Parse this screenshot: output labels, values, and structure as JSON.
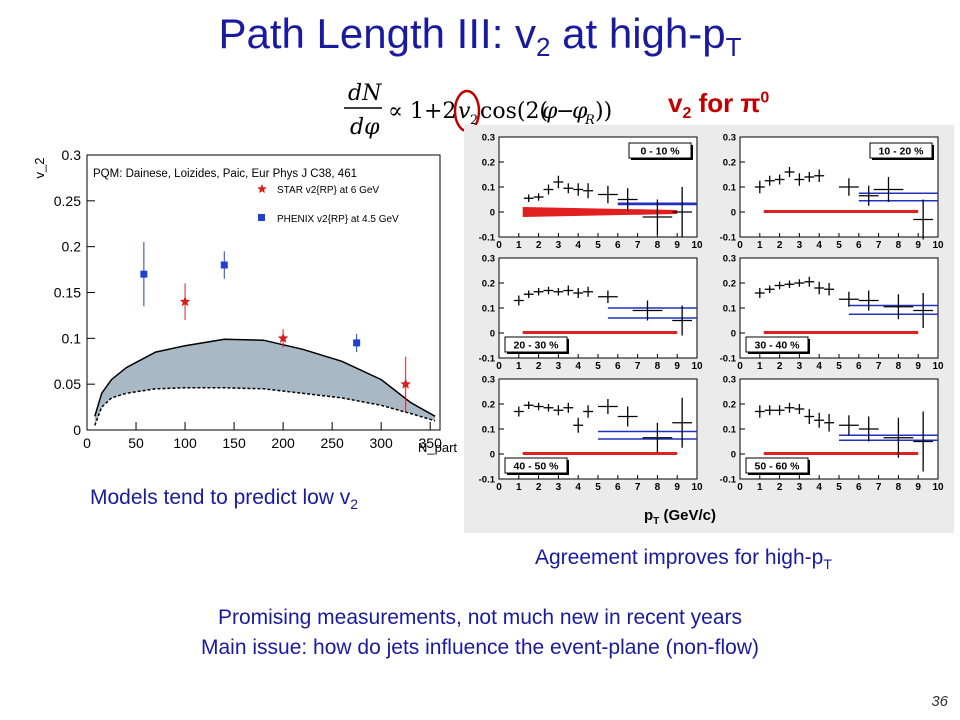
{
  "slide": {
    "title_main": "Path Length III: v",
    "title_sub1": "2",
    "title_mid": " at high-p",
    "title_sub2": "T",
    "formula_text": "dN/dφ ∝ 1 + 2 v2 cos(2(φ − φR))",
    "right_label_v": "v",
    "right_label_sub": "2",
    "right_label_rest": " for ",
    "right_label_pi": "π",
    "right_label_sup": "0",
    "caption_left_main": "Models tend to predict low v",
    "caption_left_sub": "2",
    "caption_right_main": "Agreement improves for high-p",
    "caption_right_sub": "T",
    "bottom_line1": "Promising measurements, not much new in recent years",
    "bottom_line2": "Main issue: how do jets influence the event-plane (non-flow)",
    "page_number": "36"
  },
  "chart_data": [
    {
      "type": "scatter",
      "annotation": "PQM: Dainese, Loizides, Paic, Eur Phys J C38, 461",
      "xlabel": "N_part",
      "ylabel": "v_2",
      "xlim": [
        0,
        360
      ],
      "ylim": [
        0,
        0.3
      ],
      "xticks": [
        0,
        50,
        100,
        150,
        200,
        250,
        300,
        350
      ],
      "yticks": [
        0,
        0.05,
        0.1,
        0.15,
        0.2,
        0.25,
        0.3
      ],
      "ytick_labels": [
        "0",
        "0.05",
        "0.1",
        "0.15",
        "0.2",
        "0.25",
        "0.3"
      ],
      "legend_position": "top-right",
      "series": [
        {
          "name": "STAR v2{RP} at 6 GeV",
          "marker": "star",
          "color": "#d42020",
          "points": [
            {
              "x": 100,
              "y": 0.14,
              "err": 0.02
            },
            {
              "x": 200,
              "y": 0.1,
              "err": 0.01
            },
            {
              "x": 325,
              "y": 0.05,
              "err": 0.03
            }
          ]
        },
        {
          "name": "PHENIX v2{RP} at 4.5 GeV",
          "marker": "square",
          "color": "#2040d0",
          "points": [
            {
              "x": 58,
              "y": 0.17,
              "err": 0.035
            },
            {
              "x": 140,
              "y": 0.18,
              "err": 0.015
            },
            {
              "x": 275,
              "y": 0.095,
              "err": 0.01
            }
          ]
        }
      ],
      "band": {
        "color": "#a9b8c5",
        "upper": [
          [
            8,
            0.015
          ],
          [
            15,
            0.04
          ],
          [
            25,
            0.055
          ],
          [
            40,
            0.068
          ],
          [
            70,
            0.085
          ],
          [
            100,
            0.092
          ],
          [
            140,
            0.099
          ],
          [
            180,
            0.098
          ],
          [
            220,
            0.088
          ],
          [
            260,
            0.075
          ],
          [
            300,
            0.055
          ],
          [
            330,
            0.03
          ],
          [
            355,
            0.015
          ]
        ],
        "lower": [
          [
            8,
            0.005
          ],
          [
            15,
            0.025
          ],
          [
            25,
            0.035
          ],
          [
            40,
            0.04
          ],
          [
            70,
            0.045
          ],
          [
            100,
            0.046
          ],
          [
            140,
            0.046
          ],
          [
            180,
            0.045
          ],
          [
            220,
            0.04
          ],
          [
            260,
            0.035
          ],
          [
            300,
            0.027
          ],
          [
            330,
            0.018
          ],
          [
            355,
            0.01
          ]
        ]
      }
    },
    {
      "type": "scatter",
      "xlabel_main": "p",
      "xlabel_sub": "T",
      "xlabel_unit": "(GeV/c)",
      "xlim": [
        0,
        10
      ],
      "ylim": [
        -0.1,
        0.3
      ],
      "xticks": [
        0,
        1,
        2,
        3,
        4,
        5,
        6,
        7,
        8,
        9,
        10
      ],
      "yticks": [
        -0.1,
        0,
        0.1,
        0.2,
        0.3
      ],
      "ytick_labels": [
        "-0.1",
        "0",
        "0.1",
        "0.2",
        "0.3"
      ],
      "panels": [
        {
          "label": "0 - 10 %",
          "label_pos": "top-right",
          "points": [
            [
              1.5,
              0.055,
              0.25,
              0.015
            ],
            [
              2,
              0.06,
              0.25,
              0.015
            ],
            [
              2.5,
              0.09,
              0.25,
              0.02
            ],
            [
              3,
              0.12,
              0.25,
              0.025
            ],
            [
              3.5,
              0.095,
              0.25,
              0.02
            ],
            [
              4,
              0.09,
              0.25,
              0.025
            ],
            [
              4.5,
              0.085,
              0.25,
              0.03
            ],
            [
              5.5,
              0.07,
              0.5,
              0.035
            ],
            [
              6.5,
              0.05,
              0.5,
              0.045
            ],
            [
              8,
              -0.02,
              0.75,
              0.07
            ],
            [
              9.25,
              0.0,
              0.5,
              0.1
            ]
          ],
          "red_band": [
            [
              1.2,
              0.0
            ],
            [
              9.0,
              0.0
            ]
          ],
          "red_thick": true,
          "blue_lines": [
            [
              6.0,
              0.035
            ],
            [
              6.0,
              0.03
            ]
          ],
          "blue_span": [
            6.0,
            10
          ]
        },
        {
          "label": "10 - 20 %",
          "label_pos": "top-right",
          "points": [
            [
              1,
              0.1,
              0.25,
              0.025
            ],
            [
              1.5,
              0.125,
              0.25,
              0.02
            ],
            [
              2,
              0.13,
              0.25,
              0.02
            ],
            [
              2.5,
              0.16,
              0.25,
              0.02
            ],
            [
              3,
              0.13,
              0.25,
              0.025
            ],
            [
              3.5,
              0.14,
              0.25,
              0.02
            ],
            [
              4,
              0.145,
              0.25,
              0.025
            ],
            [
              5.5,
              0.1,
              0.5,
              0.035
            ],
            [
              6.5,
              0.065,
              0.5,
              0.04
            ],
            [
              7.5,
              0.09,
              0.75,
              0.05
            ],
            [
              9.25,
              -0.03,
              0.5,
              0.08
            ]
          ],
          "red_band": [
            [
              1.2,
              0.0
            ],
            [
              9.0,
              0.0
            ]
          ],
          "red_thick": false,
          "blue_lines": [
            [
              6.5,
              0.075
            ],
            [
              6.5,
              0.045
            ]
          ],
          "blue_span": [
            6.0,
            10
          ]
        },
        {
          "label": "20 - 30 %",
          "label_pos": "bottom-left",
          "points": [
            [
              1,
              0.13,
              0.25,
              0.02
            ],
            [
              1.5,
              0.155,
              0.25,
              0.015
            ],
            [
              2,
              0.165,
              0.25,
              0.015
            ],
            [
              2.5,
              0.17,
              0.25,
              0.015
            ],
            [
              3,
              0.165,
              0.25,
              0.015
            ],
            [
              3.5,
              0.17,
              0.25,
              0.02
            ],
            [
              4,
              0.16,
              0.25,
              0.02
            ],
            [
              4.5,
              0.165,
              0.25,
              0.02
            ],
            [
              5.5,
              0.145,
              0.5,
              0.025
            ],
            [
              7.5,
              0.09,
              0.75,
              0.04
            ],
            [
              9.25,
              0.05,
              0.5,
              0.06
            ]
          ],
          "red_band": [
            [
              1.2,
              0.0
            ],
            [
              9.0,
              0.0
            ]
          ],
          "red_thick": false,
          "blue_lines": [
            [
              5.5,
              0.1
            ],
            [
              5.5,
              0.06
            ]
          ],
          "blue_span": [
            5.5,
            10
          ]
        },
        {
          "label": "30 - 40 %",
          "label_pos": "bottom-left",
          "points": [
            [
              1,
              0.16,
              0.25,
              0.02
            ],
            [
              1.5,
              0.175,
              0.25,
              0.015
            ],
            [
              2,
              0.19,
              0.25,
              0.015
            ],
            [
              2.5,
              0.195,
              0.25,
              0.015
            ],
            [
              3,
              0.2,
              0.25,
              0.015
            ],
            [
              3.5,
              0.205,
              0.25,
              0.02
            ],
            [
              4,
              0.18,
              0.25,
              0.025
            ],
            [
              4.5,
              0.175,
              0.25,
              0.025
            ],
            [
              5.5,
              0.135,
              0.5,
              0.03
            ],
            [
              6.5,
              0.13,
              0.5,
              0.04
            ],
            [
              8,
              0.105,
              0.75,
              0.05
            ],
            [
              9.25,
              0.09,
              0.5,
              0.07
            ]
          ],
          "red_band": [
            [
              1.2,
              0.0
            ],
            [
              9.0,
              0.0
            ]
          ],
          "red_thick": false,
          "blue_lines": [
            [
              5.5,
              0.11
            ],
            [
              5.5,
              0.075
            ]
          ],
          "blue_span": [
            5.5,
            10
          ]
        },
        {
          "label": "40 - 50 %",
          "label_pos": "bottom-left",
          "points": [
            [
              1,
              0.17,
              0.25,
              0.02
            ],
            [
              1.5,
              0.195,
              0.25,
              0.015
            ],
            [
              2,
              0.19,
              0.25,
              0.015
            ],
            [
              2.5,
              0.185,
              0.25,
              0.015
            ],
            [
              3,
              0.175,
              0.25,
              0.02
            ],
            [
              3.5,
              0.185,
              0.25,
              0.02
            ],
            [
              4,
              0.115,
              0.25,
              0.03
            ],
            [
              4.5,
              0.17,
              0.25,
              0.025
            ],
            [
              5.5,
              0.19,
              0.5,
              0.03
            ],
            [
              6.5,
              0.15,
              0.5,
              0.04
            ],
            [
              8,
              0.065,
              0.75,
              0.06
            ],
            [
              9.25,
              0.125,
              0.5,
              0.1
            ]
          ],
          "red_band": [
            [
              1.2,
              0.0
            ],
            [
              9.0,
              0.0
            ]
          ],
          "red_thick": false,
          "blue_lines": [
            [
              5.0,
              0.09
            ],
            [
              5.0,
              0.06
            ]
          ],
          "blue_span": [
            5.0,
            10
          ]
        },
        {
          "label": "50 - 60 %",
          "label_pos": "bottom-left",
          "points": [
            [
              1,
              0.17,
              0.25,
              0.025
            ],
            [
              1.5,
              0.175,
              0.25,
              0.02
            ],
            [
              2,
              0.175,
              0.25,
              0.02
            ],
            [
              2.5,
              0.185,
              0.25,
              0.02
            ],
            [
              3,
              0.18,
              0.25,
              0.02
            ],
            [
              3.5,
              0.15,
              0.25,
              0.03
            ],
            [
              4,
              0.135,
              0.25,
              0.03
            ],
            [
              4.5,
              0.125,
              0.25,
              0.035
            ],
            [
              5.5,
              0.115,
              0.5,
              0.04
            ],
            [
              6.5,
              0.1,
              0.5,
              0.05
            ],
            [
              8,
              0.065,
              0.75,
              0.08
            ],
            [
              9.25,
              0.05,
              0.5,
              0.12
            ]
          ],
          "red_band": [
            [
              1.2,
              0.0
            ],
            [
              9.0,
              0.0
            ]
          ],
          "red_thick": false,
          "blue_lines": [
            [
              5.0,
              0.075
            ],
            [
              5.0,
              0.055
            ]
          ],
          "blue_span": [
            5.0,
            10
          ]
        }
      ]
    }
  ]
}
